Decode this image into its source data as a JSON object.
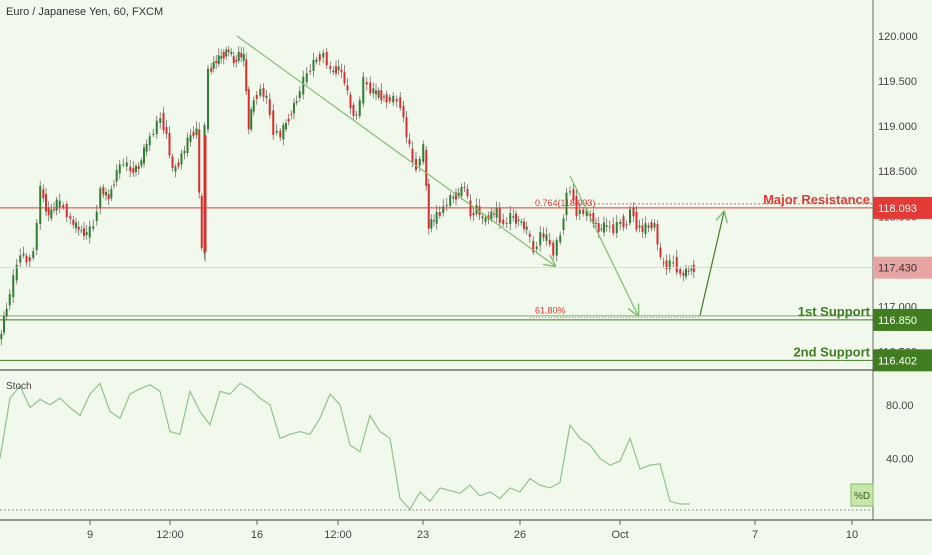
{
  "header": {
    "title": "Euro / Japanese Yen, 60, FXCM"
  },
  "colors": {
    "background": "#f1f9ec",
    "up": "#2e7d32",
    "down": "#d32f2f",
    "wick": "#7a6a6a",
    "resistance": "#e53935",
    "support": "#3f7d20",
    "arrow": "#7fbf6f",
    "stoch": "#8fc48a",
    "current": "#e8a3a3"
  },
  "chart_data": [
    {
      "type": "candlestick",
      "title": "Euro / Japanese Yen, 60, FXCM",
      "ylim": [
        116.35,
        120.2
      ],
      "yticks": [
        "120.000",
        "119.500",
        "119.000",
        "118.500",
        "118.000",
        "117.500",
        "117.000",
        "116.500"
      ],
      "x_labels": [
        "9",
        "12:00",
        "16",
        "12:00",
        "23",
        "26",
        "Oct",
        "7",
        "10"
      ],
      "path_x_range": [
        0,
        695
      ],
      "price_path": [
        [
          0,
          116.6
        ],
        [
          8,
          117.0
        ],
        [
          15,
          117.3
        ],
        [
          22,
          117.6
        ],
        [
          28,
          117.5
        ],
        [
          35,
          117.6
        ],
        [
          42,
          118.3
        ],
        [
          50,
          118.0
        ],
        [
          58,
          118.15
        ],
        [
          65,
          118.1
        ],
        [
          72,
          117.95
        ],
        [
          80,
          117.85
        ],
        [
          88,
          117.8
        ],
        [
          95,
          117.9
        ],
        [
          102,
          118.3
        ],
        [
          110,
          118.2
        ],
        [
          118,
          118.5
        ],
        [
          125,
          118.6
        ],
        [
          132,
          118.5
        ],
        [
          140,
          118.55
        ],
        [
          148,
          118.8
        ],
        [
          155,
          118.95
        ],
        [
          162,
          119.1
        ],
        [
          168,
          118.9
        ],
        [
          174,
          118.5
        ],
        [
          180,
          118.6
        ],
        [
          186,
          118.75
        ],
        [
          192,
          118.9
        ],
        [
          198,
          118.95
        ],
        [
          203,
          117.6
        ],
        [
          206,
          119.0
        ],
        [
          210,
          119.6
        ],
        [
          215,
          119.7
        ],
        [
          220,
          119.75
        ],
        [
          225,
          119.8
        ],
        [
          230,
          119.85
        ],
        [
          235,
          119.7
        ],
        [
          240,
          119.8
        ],
        [
          245,
          119.75
        ],
        [
          250,
          119.0
        ],
        [
          255,
          119.3
        ],
        [
          262,
          119.4
        ],
        [
          268,
          119.3
        ],
        [
          275,
          118.95
        ],
        [
          282,
          118.9
        ],
        [
          290,
          119.1
        ],
        [
          298,
          119.3
        ],
        [
          305,
          119.5
        ],
        [
          312,
          119.65
        ],
        [
          318,
          119.75
        ],
        [
          325,
          119.8
        ],
        [
          332,
          119.6
        ],
        [
          340,
          119.65
        ],
        [
          346,
          119.5
        ],
        [
          352,
          119.2
        ],
        [
          358,
          119.1
        ],
        [
          365,
          119.5
        ],
        [
          372,
          119.4
        ],
        [
          380,
          119.35
        ],
        [
          388,
          119.3
        ],
        [
          395,
          119.3
        ],
        [
          402,
          119.25
        ],
        [
          408,
          118.9
        ],
        [
          414,
          118.6
        ],
        [
          418,
          118.55
        ],
        [
          425,
          118.75
        ],
        [
          430,
          117.9
        ],
        [
          438,
          118.0
        ],
        [
          445,
          118.1
        ],
        [
          452,
          118.2
        ],
        [
          460,
          118.25
        ],
        [
          466,
          118.35
        ],
        [
          472,
          118.0
        ],
        [
          478,
          118.1
        ],
        [
          484,
          117.95
        ],
        [
          490,
          118.0
        ],
        [
          498,
          118.05
        ],
        [
          505,
          117.9
        ],
        [
          512,
          118.0
        ],
        [
          520,
          117.95
        ],
        [
          528,
          117.85
        ],
        [
          535,
          117.6
        ],
        [
          542,
          117.8
        ],
        [
          548,
          117.75
        ],
        [
          555,
          117.6
        ],
        [
          562,
          117.8
        ],
        [
          568,
          118.25
        ],
        [
          572,
          118.3
        ],
        [
          578,
          118.05
        ],
        [
          585,
          118.05
        ],
        [
          592,
          118.0
        ],
        [
          600,
          117.85
        ],
        [
          608,
          117.9
        ],
        [
          615,
          117.85
        ],
        [
          622,
          117.95
        ],
        [
          628,
          117.9
        ],
        [
          632,
          118.1
        ],
        [
          638,
          117.9
        ],
        [
          644,
          117.85
        ],
        [
          650,
          117.9
        ],
        [
          656,
          117.9
        ],
        [
          662,
          117.5
        ],
        [
          668,
          117.45
        ],
        [
          675,
          117.5
        ],
        [
          682,
          117.35
        ],
        [
          690,
          117.4
        ],
        [
          695,
          117.43
        ]
      ],
      "current_price": 117.43,
      "fib_labels": [
        {
          "label": "0.764(118.093)",
          "price": 118.093
        },
        {
          "label": "61.80%",
          "price": 116.9
        }
      ],
      "levels": [
        {
          "name": "Major Resistance",
          "price": 118.093,
          "price_label": "118.093",
          "color": "#e53935"
        },
        {
          "name": "1st Support",
          "price": 116.85,
          "price_label": "116.850",
          "color": "#3f7d20"
        },
        {
          "name": "2nd Support",
          "price": 116.402,
          "price_label": "116.402",
          "color": "#3f7d20"
        }
      ],
      "arrows": [
        {
          "from": [
            237,
            120.0
          ],
          "to": [
            555,
            117.45
          ]
        },
        {
          "from": [
            570,
            118.45
          ],
          "to": [
            638,
            116.9
          ]
        },
        {
          "from": [
            700,
            116.9
          ],
          "to": [
            724,
            118.05
          ]
        }
      ],
      "current_label": "117.430"
    },
    {
      "type": "line",
      "title": "Stoch",
      "ylim": [
        0,
        100
      ],
      "yticks": [
        "80.00",
        "40.00"
      ],
      "series": [
        {
          "name": "%D",
          "x": [
            0,
            10,
            20,
            30,
            40,
            50,
            60,
            70,
            80,
            90,
            100,
            110,
            120,
            130,
            140,
            150,
            160,
            170,
            180,
            190,
            200,
            210,
            220,
            230,
            240,
            250,
            260,
            270,
            280,
            290,
            300,
            310,
            320,
            330,
            340,
            350,
            360,
            370,
            380,
            390,
            400,
            410,
            420,
            430,
            440,
            450,
            460,
            470,
            480,
            490,
            500,
            510,
            520,
            530,
            540,
            550,
            560,
            570,
            580,
            590,
            600,
            610,
            620,
            630,
            640,
            650,
            660,
            670,
            680,
            690
          ],
          "values": [
            40,
            85,
            94,
            78,
            84,
            80,
            85,
            78,
            72,
            88,
            96,
            75,
            70,
            88,
            92,
            95,
            90,
            60,
            58,
            90,
            75,
            65,
            90,
            88,
            96,
            92,
            85,
            80,
            55,
            58,
            60,
            58,
            70,
            88,
            80,
            50,
            45,
            72,
            60,
            55,
            10,
            2,
            15,
            8,
            18,
            16,
            14,
            20,
            12,
            15,
            10,
            18,
            15,
            25,
            20,
            18,
            22,
            65,
            55,
            50,
            40,
            35,
            38,
            55,
            32,
            35,
            36,
            8,
            6,
            6
          ]
        }
      ],
      "series_label": "%D"
    }
  ]
}
